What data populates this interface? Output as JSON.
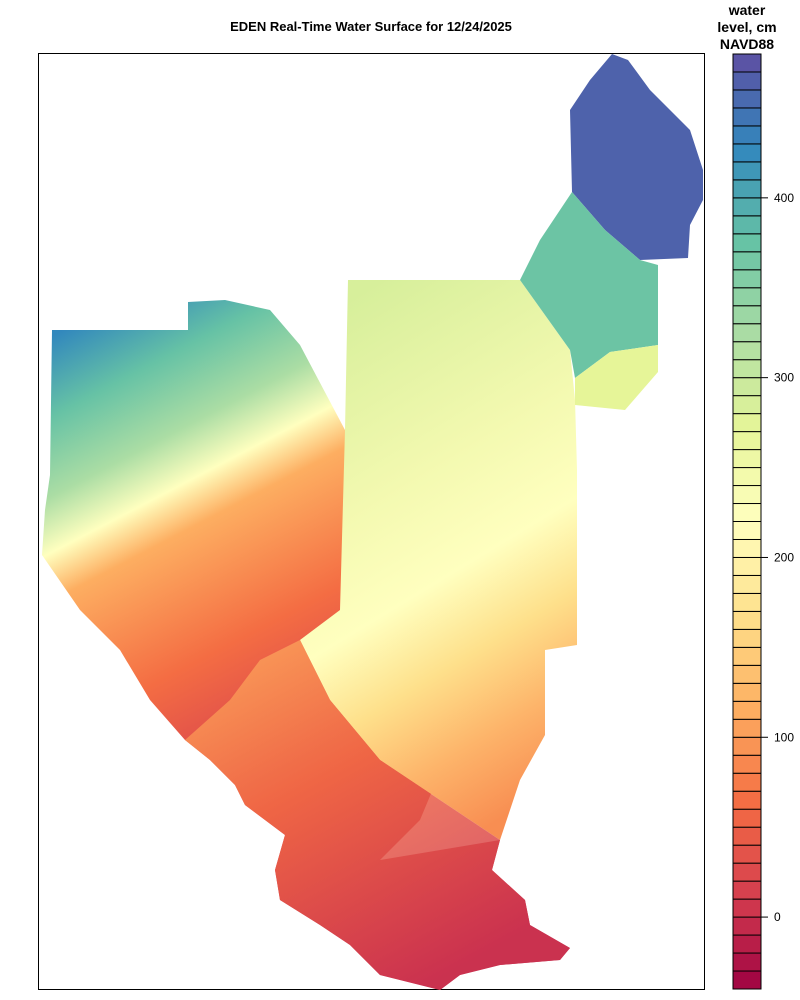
{
  "title": "EDEN Real-Time Water Surface for 12/24/2025",
  "legend": {
    "title_lines": [
      "water",
      "level, cm",
      "NAVD88"
    ],
    "ticks": [
      0,
      100,
      200,
      300,
      400
    ],
    "range": [
      -40,
      480
    ],
    "band_step": 10,
    "palette": [
      "#9e0142",
      "#d53e4f",
      "#f46d43",
      "#fdae61",
      "#fee08b",
      "#ffffbf",
      "#e6f598",
      "#abdda4",
      "#66c2a5",
      "#3288bd",
      "#5e4fa2"
    ]
  },
  "chart_data": {
    "type": "heatmap",
    "title": "EDEN Real-Time Water Surface for 12/24/2025",
    "colorbar_label": "water level, cm NAVD88",
    "colorbar_ticks": [
      0,
      100,
      200,
      300,
      400
    ],
    "value_range": [
      -40,
      480
    ],
    "regions": [
      {
        "area": "northeast lobe",
        "approx_value": 470
      },
      {
        "area": "east-central band",
        "approx_value": 380
      },
      {
        "area": "northwest corner",
        "approx_value": 400
      },
      {
        "area": "central",
        "approx_value": 240
      },
      {
        "area": "southwest coast",
        "approx_value": 0
      },
      {
        "area": "south tip",
        "approx_value": 10
      }
    ]
  }
}
